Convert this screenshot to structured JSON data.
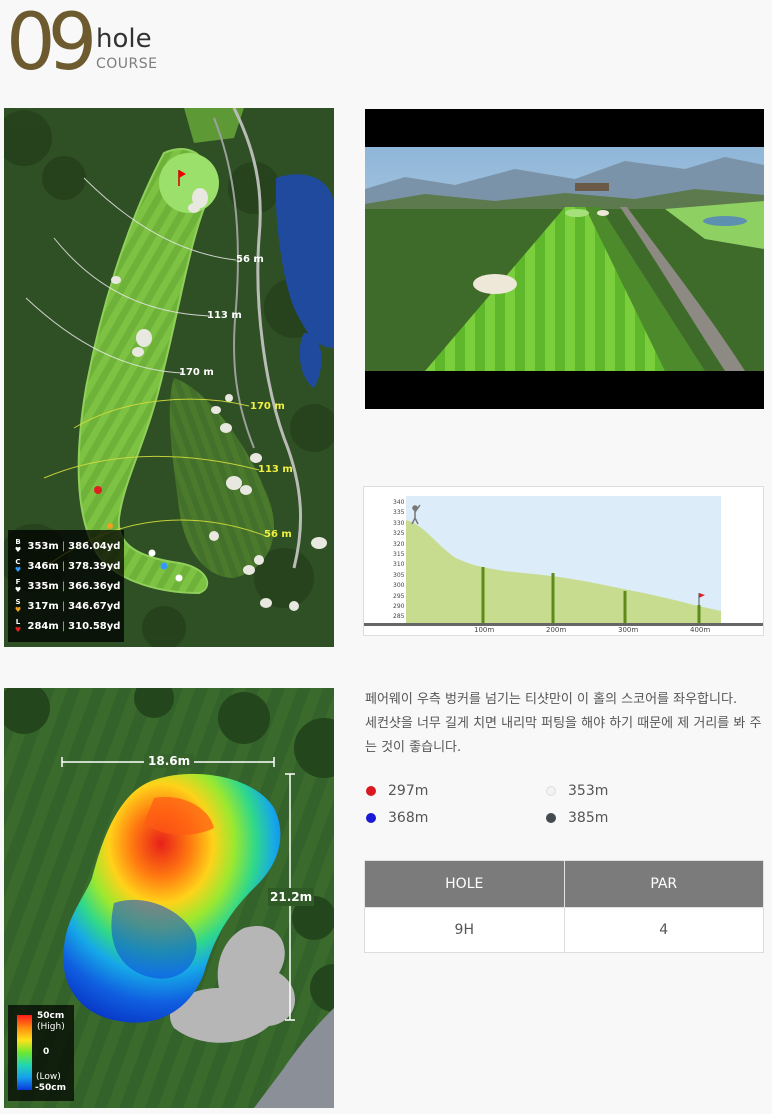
{
  "header": {
    "hole_number": "09",
    "hole_word": "hole",
    "course_word": "COURSE"
  },
  "course_map": {
    "distance_labels": [
      "56 m",
      "113 m",
      "170 m",
      "170 m",
      "113 m",
      "56 m"
    ],
    "tee_legend": [
      {
        "tee": "B",
        "meters": "353m",
        "yards": "386.04yd",
        "color": "#ffffff"
      },
      {
        "tee": "C",
        "meters": "346m",
        "yards": "378.39yd",
        "color": "#3399ff"
      },
      {
        "tee": "F",
        "meters": "335m",
        "yards": "366.36yd",
        "color": "#ffffff"
      },
      {
        "tee": "S",
        "meters": "317m",
        "yards": "346.67yd",
        "color": "#f0a020"
      },
      {
        "tee": "L",
        "meters": "284m",
        "yards": "310.58yd",
        "color": "#e02020"
      }
    ]
  },
  "elevation": {
    "y_ticks": [
      "340",
      "335",
      "330",
      "325",
      "320",
      "315",
      "310",
      "305",
      "300",
      "295",
      "290",
      "285"
    ],
    "x_ticks": [
      "100m",
      "200m",
      "300m",
      "400m"
    ]
  },
  "green": {
    "width_label": "18.6m",
    "depth_label": "21.2m",
    "scale": {
      "high": "50cm",
      "high_note": "(High)",
      "mid": "0",
      "low_note": "(Low)",
      "low": "-50cm"
    }
  },
  "description": {
    "line1": "페어웨이 우측 벙커를 넘기는 티샷만이 이 홀의 스코어를 좌우합니다.",
    "line2": "세컨샷을 너무 길게 치면 내리막 퍼팅을 해야 하기 때문에 제 거리를 봐 주",
    "line3": "는 것이 좋습니다."
  },
  "tees": [
    {
      "distance": "297m",
      "color": "#d9181f"
    },
    {
      "distance": "353m",
      "color": "#f2f2f2"
    },
    {
      "distance": "368m",
      "color": "#1a1ad6"
    },
    {
      "distance": "385m",
      "color": "#444b4f"
    }
  ],
  "table": {
    "headers": [
      "HOLE",
      "PAR"
    ],
    "values": [
      "9H",
      "4"
    ]
  }
}
